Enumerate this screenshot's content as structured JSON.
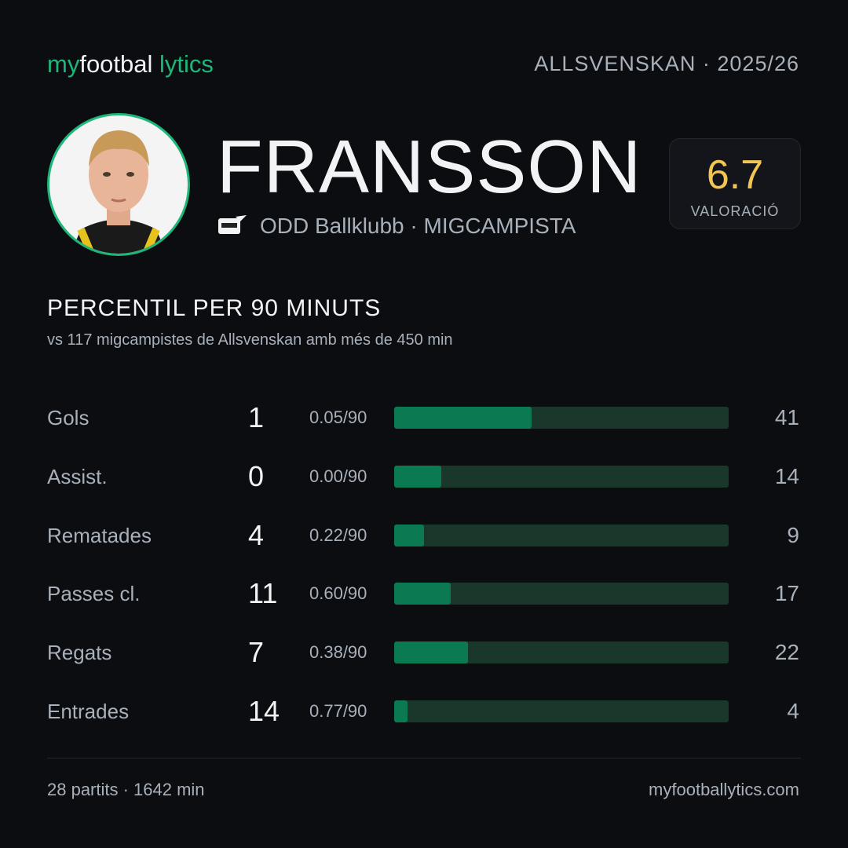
{
  "header": {
    "brand": [
      "my",
      "footbal",
      "lytics"
    ],
    "league_season": "ALLSVENSKAN · 2025/26"
  },
  "player": {
    "name": "FRANSSON",
    "team_position": "ODD Ballklubb · MIGCAMPISTA",
    "rating": 6.7,
    "rating_label": "VALORACIÓ"
  },
  "section": {
    "title": "PERCENTIL PER 90 MINUTS",
    "subtitle": "vs 117 migcampistes de Allsvenskan amb més de 450 min"
  },
  "stats": {
    "percentile_lim": [
      0,
      100
    ],
    "rows": [
      {
        "label": "Gols",
        "total": 1,
        "per90": "0.05/90",
        "percentile": 41
      },
      {
        "label": "Assist.",
        "total": 0,
        "per90": "0.00/90",
        "percentile": 14
      },
      {
        "label": "Rematades",
        "total": 4,
        "per90": "0.22/90",
        "percentile": 9
      },
      {
        "label": "Passes cl.",
        "total": 11,
        "per90": "0.60/90",
        "percentile": 17
      },
      {
        "label": "Regats",
        "total": 7,
        "per90": "0.38/90",
        "percentile": 22
      },
      {
        "label": "Entrades",
        "total": 14,
        "per90": "0.77/90",
        "percentile": 4
      }
    ]
  },
  "footer": {
    "summary": "28 partits · 1642 min",
    "site": "myfootballytics.com"
  }
}
